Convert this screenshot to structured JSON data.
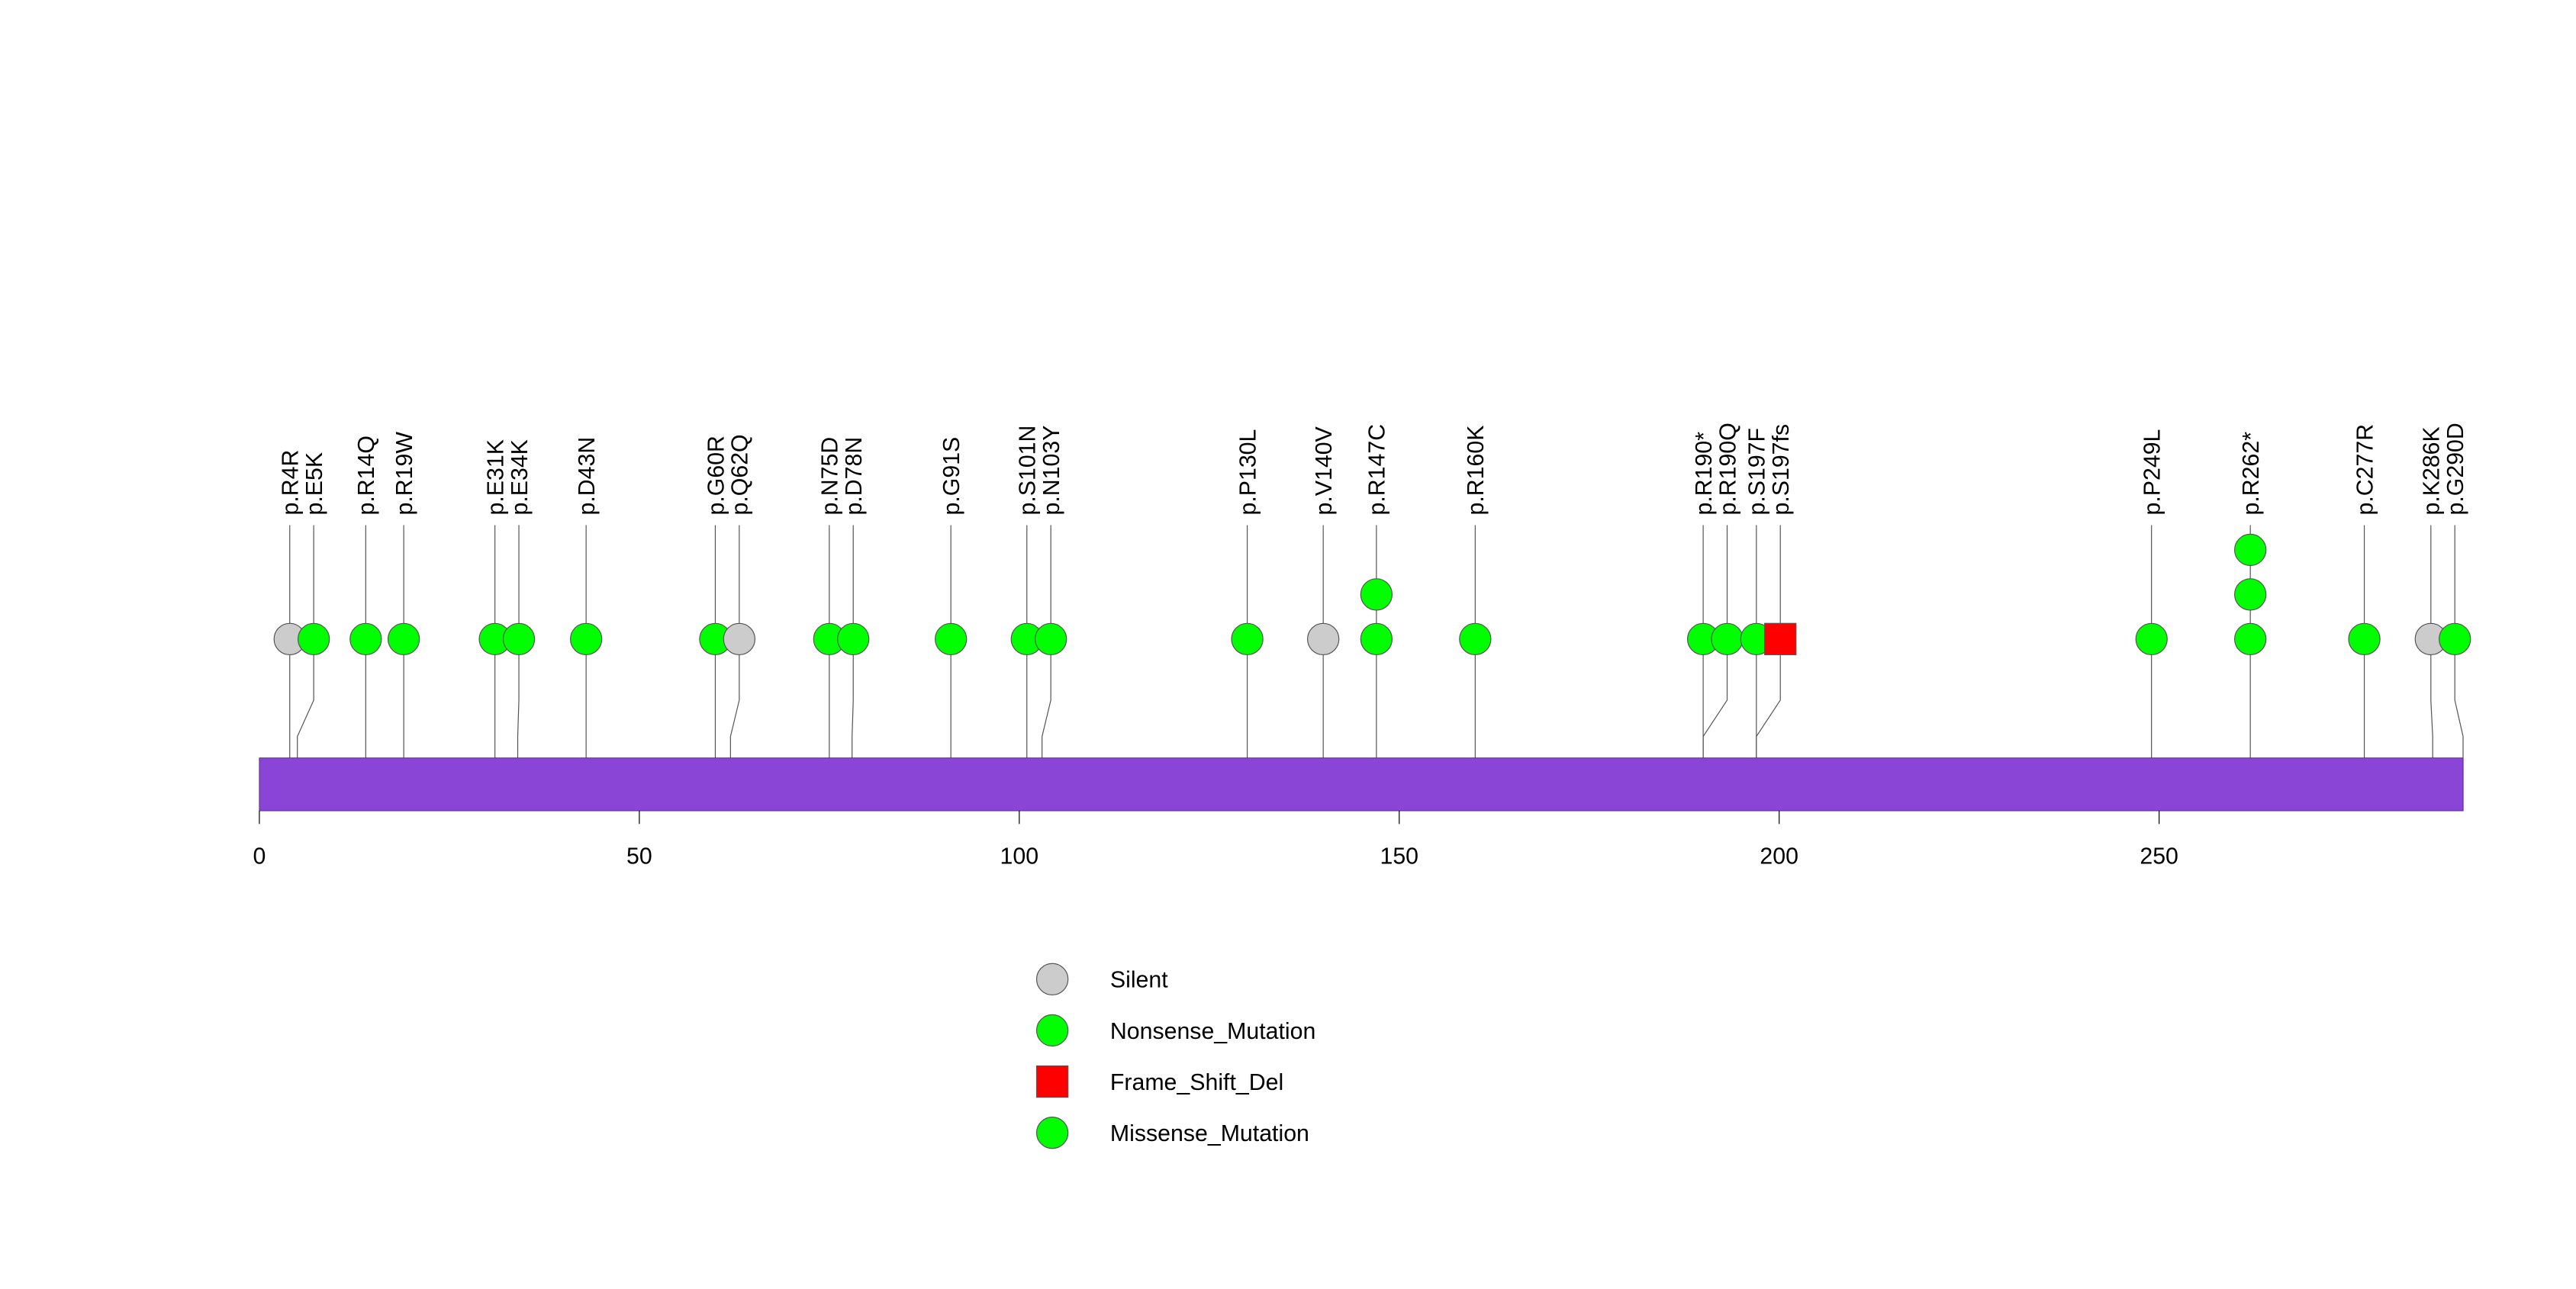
{
  "colors": {
    "Silent": "#CCCCCC",
    "Nonsense_Mutation": "#00FF00",
    "Frame_Shift_Del": "#FF0000",
    "Missense_Mutation": "#00FF00",
    "protein_bar": "#8A44D6"
  },
  "chart_data": {
    "type": "lollipop",
    "title": "",
    "xlabel": "",
    "ylabel": "",
    "protein_length": 290,
    "xlim": [
      0,
      290
    ],
    "xticks": [
      0,
      50,
      100,
      150,
      200,
      250
    ],
    "legend": {
      "placement": "bottom-center",
      "entries": [
        {
          "label": "Silent",
          "shape": "circle",
          "color_key": "Silent"
        },
        {
          "label": "Nonsense_Mutation",
          "shape": "circle",
          "color_key": "Nonsense_Mutation"
        },
        {
          "label": "Frame_Shift_Del",
          "shape": "square",
          "color_key": "Frame_Shift_Del"
        },
        {
          "label": "Missense_Mutation",
          "shape": "circle",
          "color_key": "Missense_Mutation"
        }
      ]
    },
    "mutations": [
      {
        "label": "p.R4R",
        "position": 4,
        "count": 1,
        "type": "Silent"
      },
      {
        "label": "p.E5K",
        "position": 5,
        "count": 1,
        "type": "Missense_Mutation"
      },
      {
        "label": "p.R14Q",
        "position": 14,
        "count": 1,
        "type": "Missense_Mutation"
      },
      {
        "label": "p.R19W",
        "position": 19,
        "count": 1,
        "type": "Missense_Mutation"
      },
      {
        "label": "p.E31K",
        "position": 31,
        "count": 1,
        "type": "Missense_Mutation"
      },
      {
        "label": "p.E34K",
        "position": 34,
        "count": 1,
        "type": "Missense_Mutation"
      },
      {
        "label": "p.D43N",
        "position": 43,
        "count": 1,
        "type": "Missense_Mutation"
      },
      {
        "label": "p.G60R",
        "position": 60,
        "count": 1,
        "type": "Missense_Mutation"
      },
      {
        "label": "p.Q62Q",
        "position": 62,
        "count": 1,
        "type": "Silent"
      },
      {
        "label": "p.N75D",
        "position": 75,
        "count": 1,
        "type": "Missense_Mutation"
      },
      {
        "label": "p.D78N",
        "position": 78,
        "count": 1,
        "type": "Missense_Mutation"
      },
      {
        "label": "p.G91S",
        "position": 91,
        "count": 1,
        "type": "Missense_Mutation"
      },
      {
        "label": "p.S101N",
        "position": 101,
        "count": 1,
        "type": "Missense_Mutation"
      },
      {
        "label": "p.N103Y",
        "position": 103,
        "count": 1,
        "type": "Missense_Mutation"
      },
      {
        "label": "p.P130L",
        "position": 130,
        "count": 1,
        "type": "Missense_Mutation"
      },
      {
        "label": "p.V140V",
        "position": 140,
        "count": 1,
        "type": "Silent"
      },
      {
        "label": "p.R147C",
        "position": 147,
        "count": 2,
        "type": "Missense_Mutation"
      },
      {
        "label": "p.R160K",
        "position": 160,
        "count": 1,
        "type": "Missense_Mutation"
      },
      {
        "label": "p.R190*",
        "position": 190,
        "count": 1,
        "type": "Nonsense_Mutation"
      },
      {
        "label": "p.R190Q",
        "position": 190,
        "count": 1,
        "type": "Missense_Mutation"
      },
      {
        "label": "p.S197F",
        "position": 197,
        "count": 1,
        "type": "Missense_Mutation"
      },
      {
        "label": "p.S197fs",
        "position": 197,
        "count": 1,
        "type": "Frame_Shift_Del"
      },
      {
        "label": "p.P249L",
        "position": 249,
        "count": 1,
        "type": "Missense_Mutation"
      },
      {
        "label": "p.R262*",
        "position": 262,
        "count": 3,
        "type": "Nonsense_Mutation"
      },
      {
        "label": "p.C277R",
        "position": 277,
        "count": 1,
        "type": "Missense_Mutation"
      },
      {
        "label": "p.K286K",
        "position": 286,
        "count": 1,
        "type": "Silent"
      },
      {
        "label": "p.G290D",
        "position": 290,
        "count": 1,
        "type": "Missense_Mutation"
      }
    ]
  }
}
